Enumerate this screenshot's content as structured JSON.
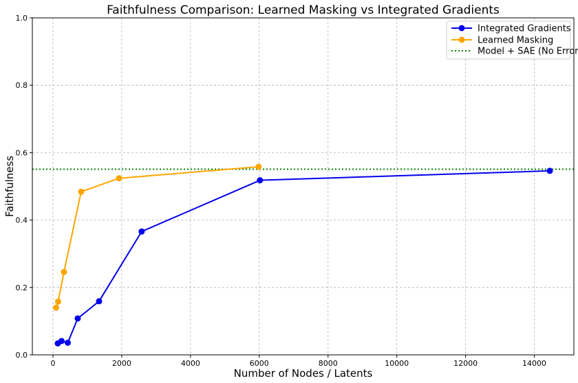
{
  "chart_data": {
    "type": "line",
    "title": "Faithfulness Comparison: Learned Masking vs Integrated Gradients",
    "xlabel": "Number of Nodes / Latents",
    "ylabel": "Faithfulness",
    "xlim": [
      -600,
      15150
    ],
    "ylim": [
      0,
      1.0
    ],
    "x_ticks": [
      0,
      2000,
      4000,
      6000,
      8000,
      10000,
      12000,
      14000
    ],
    "x_tick_labels": [
      "0",
      "2000",
      "4000",
      "6000",
      "8000",
      "10000",
      "12000",
      "14000"
    ],
    "y_ticks": [
      0.0,
      0.2,
      0.4,
      0.6,
      0.8,
      1.0
    ],
    "y_tick_labels": [
      "0.0",
      "0.2",
      "0.4",
      "0.6",
      "0.8",
      "1.0"
    ],
    "grid": true,
    "legend_position": "top-right",
    "series": [
      {
        "name": "Integrated Gradients",
        "color": "#0000ee",
        "marker": "circle",
        "x": [
          140,
          250,
          430,
          720,
          1340,
          2580,
          6020,
          14450
        ],
        "y": [
          0.034,
          0.041,
          0.036,
          0.108,
          0.159,
          0.366,
          0.518,
          0.546
        ]
      },
      {
        "name": "Learned Masking",
        "color": "#ffa500",
        "marker": "circle",
        "x": [
          90,
          150,
          320,
          820,
          1920,
          5980
        ],
        "y": [
          0.14,
          0.158,
          0.246,
          0.484,
          0.524,
          0.558
        ]
      }
    ],
    "reference_lines": [
      {
        "name": "Model + SAE (No Error)",
        "orientation": "horizontal",
        "y": 0.551,
        "color": "#008000",
        "style": "dotted"
      }
    ]
  }
}
